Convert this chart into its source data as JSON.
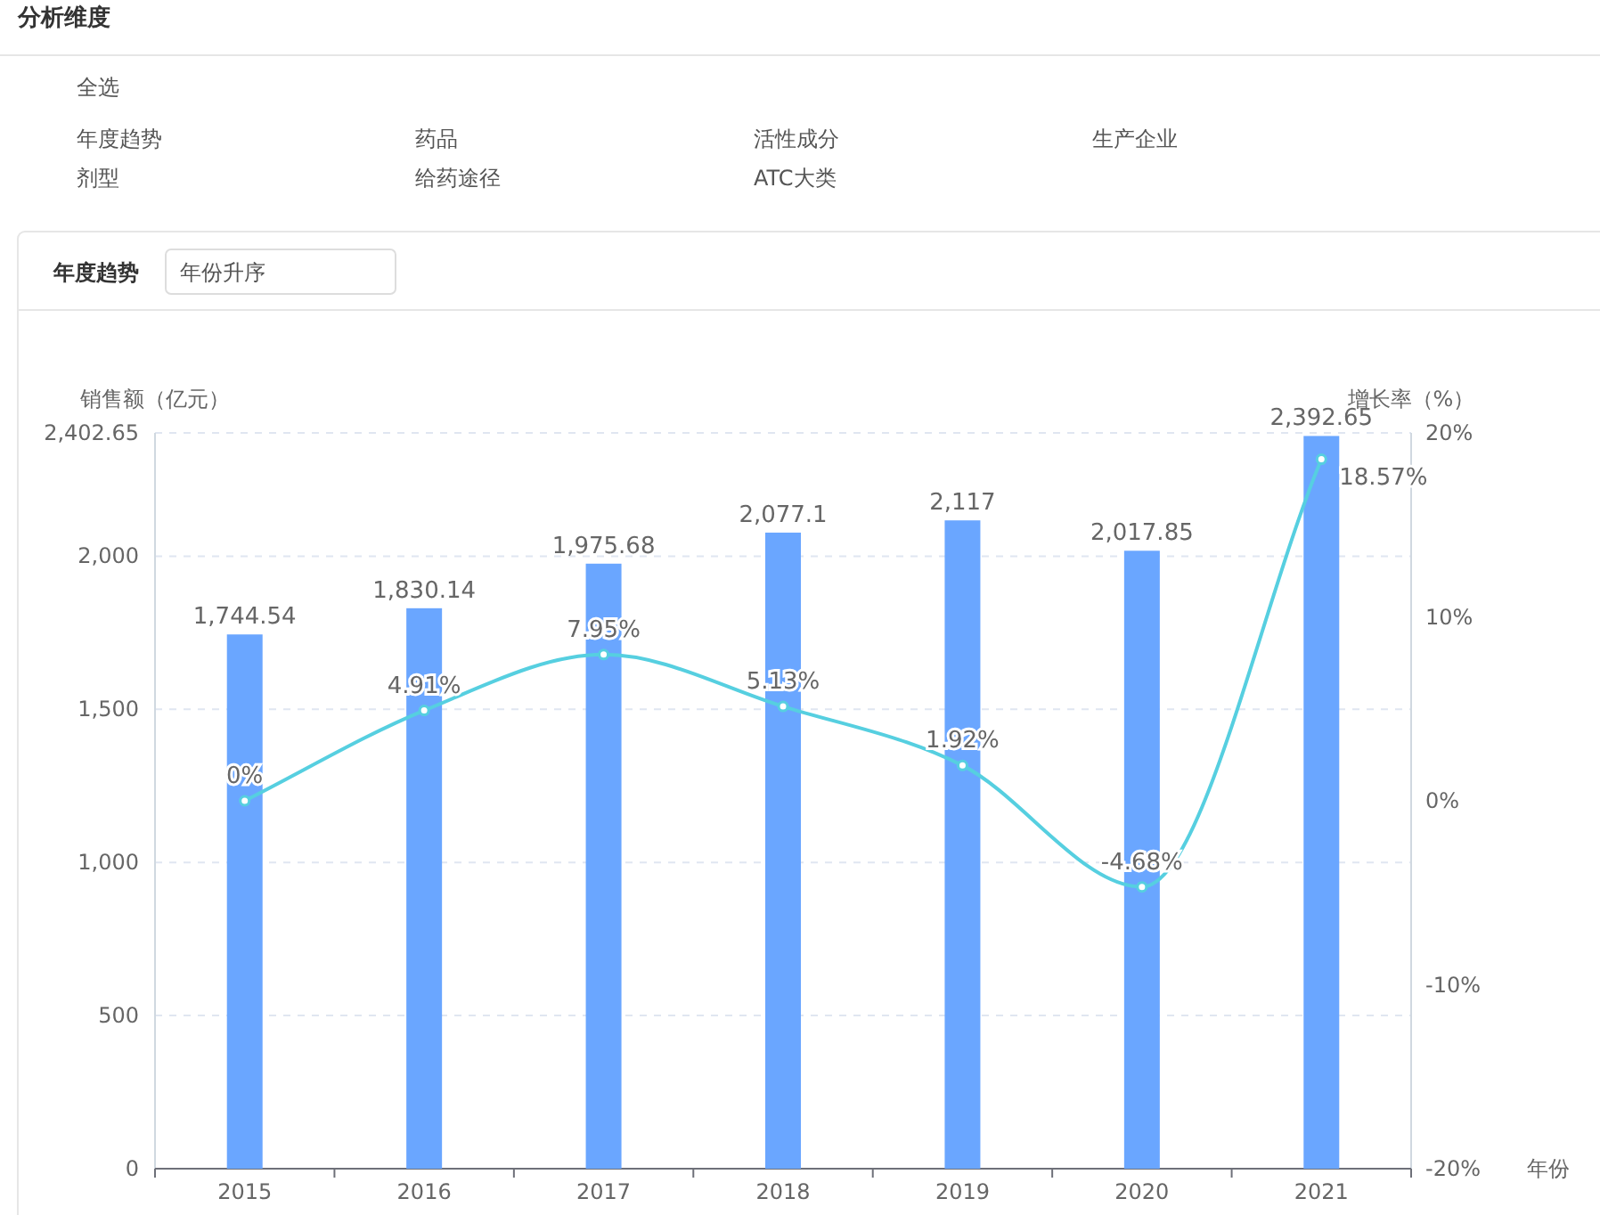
{
  "chart_data": {
    "type": "bar",
    "title": "年度趋势",
    "subtitle": "年份升序",
    "annotations": [
      "分析维度",
      "全选",
      "年度趋势",
      "药品",
      "活性成分",
      "生产企业",
      "剂型",
      "给药途径",
      "ATC大类"
    ],
    "xlabel": "年份",
    "ylabel": "销售额（亿元）",
    "y2label": "增长率（%）",
    "categories": [
      "2015",
      "2016",
      "2017",
      "2018",
      "2019",
      "2020",
      "2021"
    ],
    "series": [
      {
        "color": "#6aa6ff",
        "values": [
          1744.54,
          1830.14,
          1975.68,
          2077.1,
          2117,
          2017.85,
          2392.65
        ],
        "value_labels": [
          "1,744.54",
          "1,830.14",
          "1,975.68",
          "2,077.1",
          "2,117",
          "2,017.85",
          "2,392.65"
        ]
      },
      {
        "type": "line",
        "axis": "y2",
        "color": "#56cfe0",
        "values": [
          0,
          4.91,
          7.95,
          5.13,
          1.92,
          -4.68,
          18.57
        ],
        "value_labels": [
          "0%",
          "4.91%",
          "7.95%",
          "5.13%",
          "1.92%",
          "-4.68%",
          "18.57%"
        ]
      }
    ],
    "ylim": [
      0,
      2402.65
    ],
    "yticks": [
      0,
      {
        "value": 500,
        "label": "500"
      },
      {
        "value": 1000,
        "label": "1,000"
      },
      {
        "value": 1500,
        "label": "1,500"
      },
      {
        "value": 2000,
        "label": "2,000"
      },
      {
        "value": 2402.65,
        "label": "2,402.65"
      }
    ],
    "y2lim": [
      -20,
      20
    ],
    "y2ticks": [
      {
        "value": -20,
        "label": "-20%"
      },
      {
        "value": -10,
        "label": "-10%"
      },
      {
        "value": 0,
        "label": "0%"
      },
      {
        "value": 10,
        "label": "10%"
      },
      {
        "value": 20,
        "label": "20%"
      }
    ],
    "grid": "y",
    "marker": "circle",
    "line_style": "solid"
  }
}
